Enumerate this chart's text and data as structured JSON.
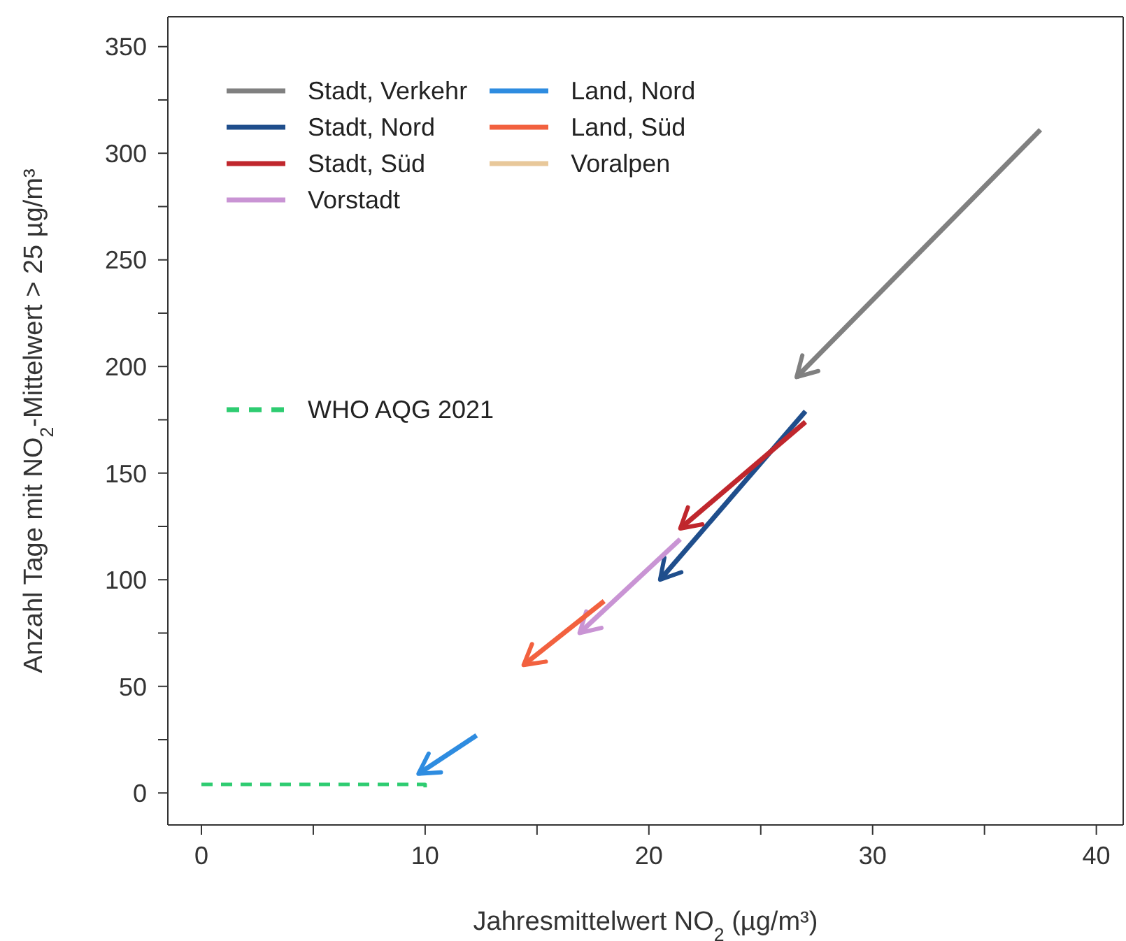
{
  "chart_data": {
    "type": "line",
    "xlabel": "Jahresmittelwert NO$_{2}$ (µg/m³)",
    "ylabel": "Anzahl Tage mit NO$_{2}$-Mittelwert > 25 µg/m³",
    "xlim": [
      -1.5,
      41.2
    ],
    "ylim": [
      -15,
      364
    ],
    "xticks": [
      0,
      {
        "value": 5,
        "label": null
      },
      10,
      {
        "value": 15,
        "label": null
      },
      20,
      {
        "value": 25,
        "label": null
      },
      30,
      {
        "value": 35,
        "label": null
      },
      40
    ],
    "yticks": [
      0,
      {
        "value": 25,
        "label": null
      },
      50,
      {
        "value": 75,
        "label": null
      },
      100,
      {
        "value": 125,
        "label": null
      },
      150,
      {
        "value": 175,
        "label": null
      },
      200,
      {
        "value": 225,
        "label": null
      },
      250,
      {
        "value": 275,
        "label": null
      },
      300,
      {
        "value": 325,
        "label": null
      },
      350
    ],
    "legend": "top left",
    "line_style": "solid",
    "series": [
      {
        "name": "Stadt, Verkehr",
        "color": "#808080",
        "x": [
          37.5,
          26.6
        ],
        "values": [
          311,
          195
        ]
      },
      {
        "name": "Stadt, Nord",
        "color": "#1f4e8c",
        "x": [
          27,
          20.5
        ],
        "values": [
          179,
          100
        ]
      },
      {
        "name": "Stadt, Süd",
        "color": "#c0272d",
        "x": [
          27,
          21.4
        ],
        "values": [
          174,
          124
        ]
      },
      {
        "name": "Vorstadt",
        "color": "#c994d4",
        "x": [
          21.4,
          16.9
        ],
        "values": [
          119,
          75
        ]
      },
      {
        "name": "Land, Nord",
        "color": "#2e8ce0",
        "x": [
          12.3,
          9.7
        ],
        "values": [
          27,
          9
        ]
      },
      {
        "name": "Land, Süd",
        "color": "#f2613f",
        "x": [
          18,
          14.4
        ],
        "values": [
          90,
          60
        ]
      },
      {
        "name": "Voralpen",
        "color": "#e8c89a",
        "x": [
          null,
          null
        ],
        "values": [
          null,
          null
        ]
      },
      {
        "name": "WHO AQG 2021",
        "color": "#2ecc71",
        "line_style": "dashed",
        "x": [
          0,
          10,
          10
        ],
        "values": [
          4,
          4,
          0
        ]
      }
    ]
  }
}
